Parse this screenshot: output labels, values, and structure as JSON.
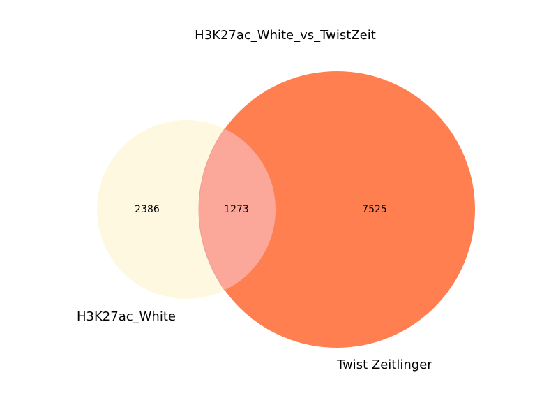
{
  "title": "H3K27ac_White_vs_TwistZeit",
  "sets": {
    "a": {
      "label": "H3K27ac_White",
      "color": "#FFF8E0"
    },
    "b": {
      "label": "Twist Zeitlinger",
      "color": "#FF7F50"
    }
  },
  "regions": {
    "a_only": "2386",
    "intersection": "1273",
    "b_only": "7525"
  },
  "intersection_color": "#FBA79A"
}
